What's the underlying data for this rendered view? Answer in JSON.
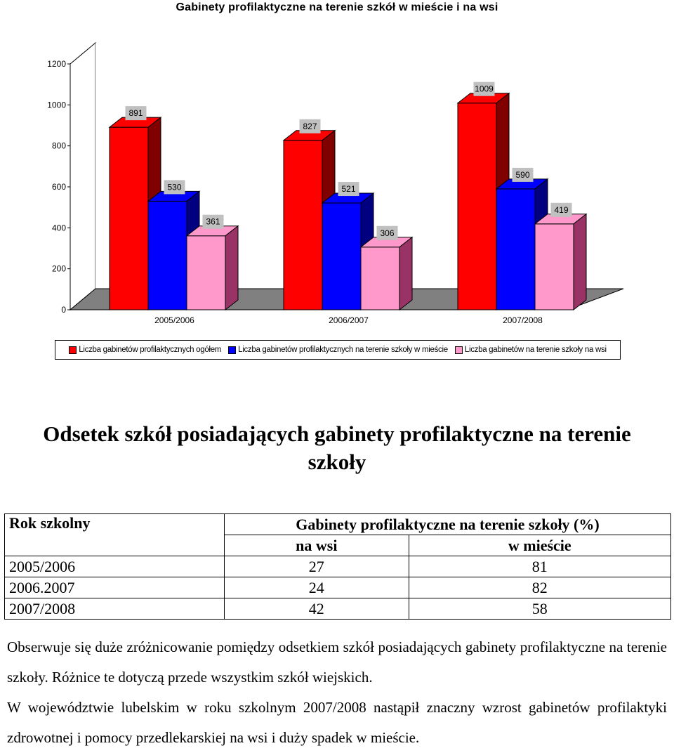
{
  "chart_data": {
    "type": "bar",
    "title": "Gabinety profilaktyczne na terenie szkół w mieście i na wsi",
    "categories": [
      "2005/2006",
      "2006/2007",
      "2007/2008"
    ],
    "series": [
      {
        "name": "Liczba gabinetów profilaktycznych ogółem",
        "values": [
          891,
          827,
          1009
        ],
        "color": "#ff0000",
        "side": "#800000"
      },
      {
        "name": "Liczba gabinetów profilaktycznych na terenie szkoły w mieście",
        "values": [
          530,
          521,
          590
        ],
        "color": "#0000ff",
        "side": "#000080"
      },
      {
        "name": "Liczba gabinetów na terenie szkoły na wsi",
        "values": [
          361,
          306,
          419
        ],
        "color": "#ff99cc",
        "side": "#993366"
      }
    ],
    "ylim": [
      0,
      1200
    ],
    "yticks": [
      0,
      200,
      400,
      600,
      800,
      1000,
      1200
    ],
    "legend_position": "bottom"
  },
  "section_title": "Odsetek szkół posiadających gabinety profilaktyczne na terenie szkoły",
  "table": {
    "col_year": "Rok szkolny",
    "col_group": "Gabinety profilaktyczne na terenie szkoły (%)",
    "col_rural": "na wsi",
    "col_urban": "w mieście",
    "rows": [
      {
        "year": "2005/2006",
        "rural": "27",
        "urban": "81"
      },
      {
        "year": "2006.2007",
        "rural": "24",
        "urban": "82"
      },
      {
        "year": "2007/2008",
        "rural": "42",
        "urban": "58"
      }
    ]
  },
  "paragraph1": "Obserwuje się duże zróżnicowanie pomiędzy odsetkiem szkół posiadających gabinety profilaktyczne na terenie szkoły. Różnice te dotyczą przede wszystkim szkół wiejskich.",
  "paragraph2": "W województwie lubelskim w roku szkolnym 2007/2008 nastąpił znaczny wzrost gabinetów profilaktyki zdrowotnej i pomocy przedlekarskiej na wsi i duży spadek w mieście."
}
